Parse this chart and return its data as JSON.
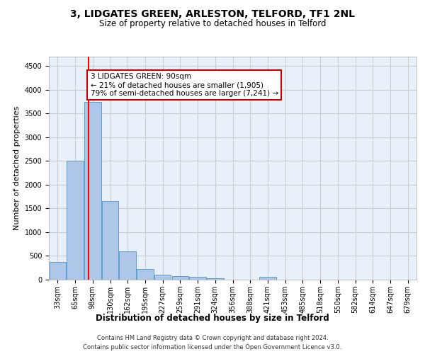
{
  "title": "3, LIDGATES GREEN, ARLESTON, TELFORD, TF1 2NL",
  "subtitle": "Size of property relative to detached houses in Telford",
  "xlabel": "Distribution of detached houses by size in Telford",
  "ylabel": "Number of detached properties",
  "footer_line1": "Contains HM Land Registry data © Crown copyright and database right 2024.",
  "footer_line2": "Contains public sector information licensed under the Open Government Licence v3.0.",
  "bin_labels": [
    "33sqm",
    "65sqm",
    "98sqm",
    "130sqm",
    "162sqm",
    "195sqm",
    "227sqm",
    "259sqm",
    "291sqm",
    "324sqm",
    "356sqm",
    "388sqm",
    "421sqm",
    "453sqm",
    "485sqm",
    "518sqm",
    "550sqm",
    "582sqm",
    "614sqm",
    "647sqm",
    "679sqm"
  ],
  "bar_values": [
    375,
    2500,
    3750,
    1650,
    600,
    225,
    110,
    70,
    55,
    35,
    0,
    0,
    55,
    0,
    0,
    0,
    0,
    0,
    0,
    0,
    0
  ],
  "bar_color": "#aec6e8",
  "bar_edge_color": "#5a9fd4",
  "red_line_bin_index": 1.75,
  "annotation_text": "3 LIDGATES GREEN: 90sqm\n← 21% of detached houses are smaller (1,905)\n79% of semi-detached houses are larger (7,241) →",
  "annotation_box_color": "#ffffff",
  "annotation_box_edge": "#cc0000",
  "annotation_text_size": 7.5,
  "ylim": [
    0,
    4700
  ],
  "yticks": [
    0,
    500,
    1000,
    1500,
    2000,
    2500,
    3000,
    3500,
    4000,
    4500
  ],
  "grid_color": "#cccccc",
  "background_color": "#e8f0fa",
  "title_fontsize": 10,
  "subtitle_fontsize": 8.5,
  "xlabel_fontsize": 8.5,
  "ylabel_fontsize": 8,
  "tick_fontsize": 7,
  "footer_fontsize": 6
}
